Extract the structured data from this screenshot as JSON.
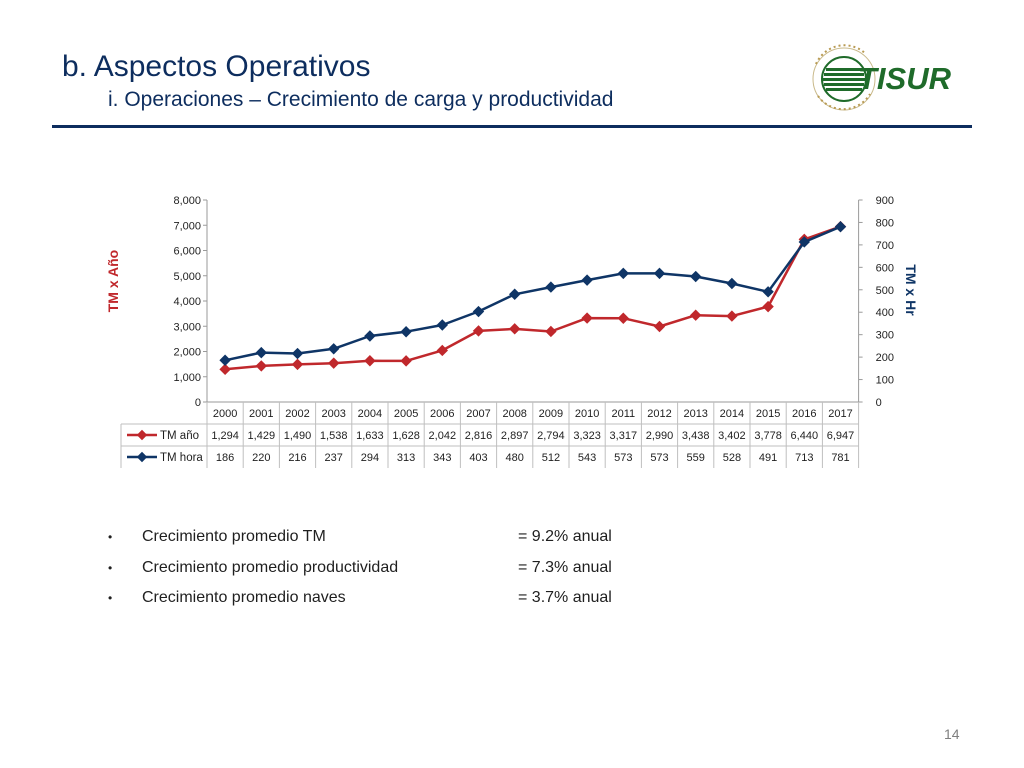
{
  "slide": {
    "title": "b. Aspectos Operativos",
    "subtitle": "i. Operaciones – Crecimiento de carga y productividad",
    "page_number": "14",
    "accent_color": "#0d2d5e"
  },
  "logo": {
    "text": "TISUR",
    "ring_text": "Matarani · Perú",
    "icon": "tisur-logo-icon",
    "color": "#1f6b2a"
  },
  "chart_data": {
    "type": "line",
    "categories": [
      "2000",
      "2001",
      "2002",
      "2003",
      "2004",
      "2005",
      "2006",
      "2007",
      "2008",
      "2009",
      "2010",
      "2011",
      "2012",
      "2013",
      "2014",
      "2015",
      "2016",
      "2017"
    ],
    "series": [
      {
        "name": "TM año",
        "axis": "left",
        "color": "#c0282c",
        "marker": "diamond",
        "values": [
          1294,
          1429,
          1490,
          1538,
          1633,
          1628,
          2042,
          2816,
          2897,
          2794,
          3323,
          3317,
          2990,
          3438,
          3402,
          3778,
          6440,
          6947
        ],
        "labels": [
          "1,294",
          "1,429",
          "1,490",
          "1,538",
          "1,633",
          "1,628",
          "2,042",
          "2,816",
          "2,897",
          "2,794",
          "3,323",
          "3,317",
          "2,990",
          "3,438",
          "3,402",
          "3,778",
          "6,440",
          "6,947"
        ]
      },
      {
        "name": "TM hora",
        "axis": "right",
        "color": "#0f3566",
        "marker": "diamond",
        "values": [
          186,
          220,
          216,
          237,
          294,
          313,
          343,
          403,
          480,
          512,
          543,
          573,
          573,
          559,
          528,
          491,
          713,
          781
        ],
        "labels": [
          "186",
          "220",
          "216",
          "237",
          "294",
          "313",
          "343",
          "403",
          "480",
          "512",
          "543",
          "573",
          "573",
          "559",
          "528",
          "491",
          "713",
          "781"
        ]
      }
    ],
    "ylabel": "TM x Año",
    "y2label": "TM x Hr",
    "ylabel_color": "#c0282c",
    "y2label_color": "#0f3566",
    "ylim": [
      0,
      8000
    ],
    "y2lim": [
      0,
      900
    ],
    "yticks": [
      "0",
      "1,000",
      "2,000",
      "3,000",
      "4,000",
      "5,000",
      "6,000",
      "7,000",
      "8,000"
    ],
    "y2ticks": [
      "0",
      "100",
      "200",
      "300",
      "400",
      "500",
      "600",
      "700",
      "800",
      "900"
    ],
    "grid": false,
    "legend": "data-table"
  },
  "bullets": [
    {
      "text": "Crecimiento promedio TM",
      "value": "= 9.2% anual"
    },
    {
      "text": "Crecimiento promedio productividad",
      "value": "= 7.3% anual"
    },
    {
      "text": "Crecimiento promedio naves",
      "value": "= 3.7% anual"
    }
  ],
  "bullet_symbol": "•"
}
